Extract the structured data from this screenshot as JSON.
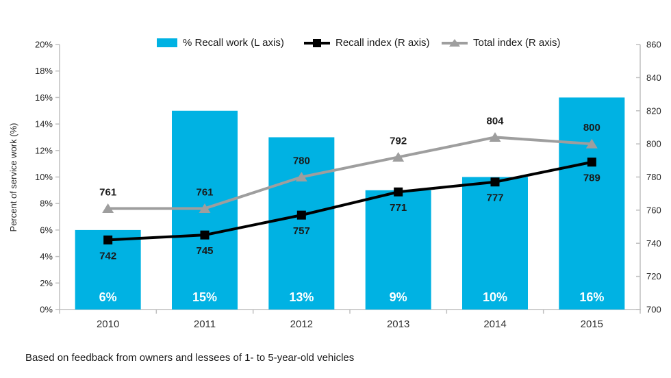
{
  "chart_data": {
    "type": "bar",
    "combo": "bar with two line series",
    "categories": [
      "2010",
      "2011",
      "2012",
      "2013",
      "2014",
      "2015"
    ],
    "series": [
      {
        "name": "% Recall work (L axis)",
        "kind": "bar",
        "axis": "left",
        "values": [
          6,
          15,
          13,
          9,
          10,
          16
        ],
        "labels": [
          "6%",
          "15%",
          "13%",
          "9%",
          "10%",
          "16%"
        ],
        "color": "#00B2E3",
        "label_color": "#FFFFFF"
      },
      {
        "name": "Recall index (R axis)",
        "kind": "line",
        "axis": "right",
        "marker": "square",
        "values": [
          742,
          745,
          757,
          771,
          777,
          789
        ],
        "color": "#000000",
        "label_position": "below"
      },
      {
        "name": "Total index (R axis)",
        "kind": "line",
        "axis": "right",
        "marker": "triangle",
        "values": [
          761,
          761,
          780,
          792,
          804,
          800
        ],
        "color": "#9E9E9E",
        "label_position": "above"
      }
    ],
    "left_axis": {
      "title": "Percent of service work (%)",
      "min": 0,
      "max": 20,
      "tick_labels": [
        "0%",
        "2%",
        "4%",
        "6%",
        "8%",
        "10%",
        "12%",
        "14%",
        "16%",
        "18%",
        "20%"
      ]
    },
    "right_axis": {
      "min": 700,
      "max": 860,
      "tick_labels": [
        "700",
        "720",
        "740",
        "760",
        "780",
        "800",
        "820",
        "840",
        "860"
      ]
    },
    "legend_position": "top",
    "grid": false,
    "title": "",
    "footnote": "Based on feedback from owners and lessees of 1- to 5-year-old vehicles",
    "colors": {
      "axis_line": "#BFBFBF",
      "tick_text": "#262626",
      "data_label_text": "#1a1a1a"
    }
  }
}
